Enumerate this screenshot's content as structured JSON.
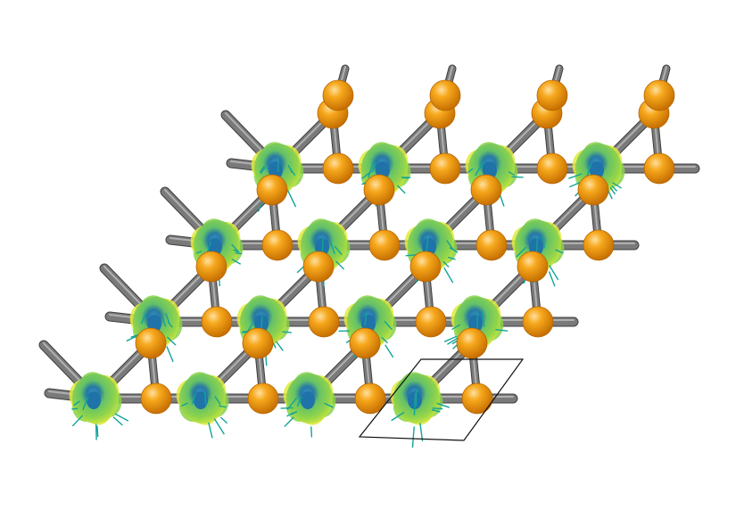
{
  "scene": {
    "description_visible_text": "",
    "lattice": {
      "columns": 4,
      "rows": 4
    },
    "colors": {
      "background": "#ffffff",
      "bond": "#7a7a7a",
      "bond_dark": "#4d4d4d",
      "atom": "#f29a0c",
      "atom_highlight": "#ffd27a",
      "lobe_green": "#86d24a",
      "lobe_yellow": "#e2ea3c",
      "lobe_core": "#1f73a8",
      "arrow": "#12a39a",
      "cell_outline": "#111111"
    }
  }
}
